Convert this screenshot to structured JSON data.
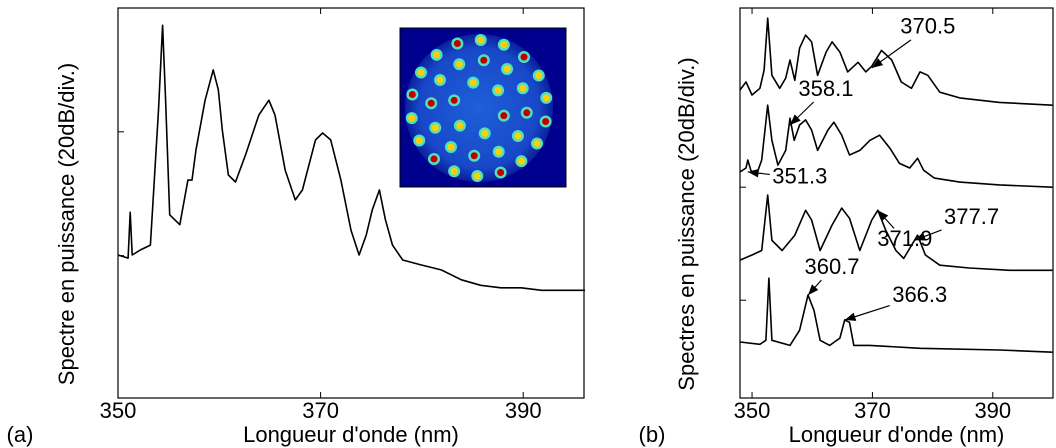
{
  "chart_data": [
    {
      "type": "line",
      "panel_label": "(a)",
      "xlabel": "Longueur d'onde (nm)",
      "ylabel": "Spectre en puissance (20dB/div.)",
      "xlim": [
        350,
        396
      ],
      "xticks": [
        350,
        370,
        390
      ],
      "ylim": [
        -23,
        40
      ],
      "yticks": [
        0,
        20
      ],
      "series": [
        {
          "color": "#000000",
          "x": [
            350.0,
            351.0,
            351.2,
            351.4,
            352.2,
            353.2,
            354.0,
            354.4,
            354.7,
            355.1,
            356.1,
            356.9,
            357.3,
            357.7,
            358.6,
            359.4,
            359.9,
            360.3,
            360.9,
            361.6,
            362.6,
            363.9,
            364.9,
            365.5,
            366.5,
            367.5,
            368.2,
            369.5,
            370.2,
            371.0,
            372.0,
            373.0,
            373.8,
            374.5,
            375.1,
            375.8,
            376.4,
            377.1,
            378.1,
            379.9,
            381.9,
            383.9,
            385.8,
            387.8,
            389.8,
            391.8,
            396.1
          ],
          "values": [
            0.1,
            -0.4,
            7.0,
            0.1,
            0.9,
            1.7,
            23.5,
            37.2,
            25.1,
            6.6,
            5.0,
            12.2,
            12.2,
            17.1,
            25.1,
            30.0,
            26.8,
            20.3,
            13.0,
            11.9,
            16.3,
            22.7,
            25.1,
            22.7,
            13.8,
            9.0,
            10.6,
            18.7,
            19.8,
            18.7,
            12.2,
            4.1,
            0.1,
            3.3,
            7.4,
            10.6,
            5.8,
            1.7,
            -0.7,
            -1.5,
            -2.3,
            -3.9,
            -4.8,
            -5.2,
            -5.2,
            -5.6,
            -5.6
          ]
        }
      ]
    },
    {
      "type": "line",
      "panel_label": "(b)",
      "xlabel": "Longueur d'onde (nm)",
      "ylabel": "Spectres en puissance (20dB/div.)",
      "xlim": [
        348,
        400
      ],
      "xticks": [
        350,
        370,
        390
      ],
      "ylim": [
        -17.3,
        51.7
      ],
      "yticks": [
        0,
        20
      ],
      "series": [
        {
          "color": "#000000",
          "x": [
            348.0,
            349.0,
            350.0,
            351.3,
            352.0,
            352.6,
            353.3,
            354.6,
            355.6,
            356.3,
            357.1,
            357.9,
            358.9,
            359.9,
            360.9,
            362.3,
            363.3,
            364.6,
            365.9,
            367.6,
            368.9,
            369.9,
            371.5,
            373.2,
            374.8,
            376.5,
            377.9,
            379.2,
            381.2,
            384.5,
            391.1,
            399.9
          ],
          "values": [
            37.2,
            38.6,
            36.3,
            37.5,
            40.7,
            49.9,
            39.8,
            37.5,
            39.3,
            42.5,
            38.9,
            44.6,
            46.9,
            45.7,
            39.8,
            43.9,
            45.7,
            43.9,
            40.4,
            42.1,
            40.4,
            41.4,
            44.2,
            42.5,
            38.6,
            37.5,
            40.4,
            39.8,
            36.8,
            35.8,
            35.0,
            34.5
          ]
        },
        {
          "color": "#000000",
          "x": [
            348.0,
            349.0,
            349.3,
            349.8,
            350.7,
            351.6,
            352.6,
            353.3,
            354.3,
            355.6,
            356.3,
            357.0,
            357.9,
            358.9,
            359.9,
            360.9,
            362.6,
            363.6,
            364.9,
            366.2,
            367.9,
            369.6,
            371.2,
            372.9,
            374.5,
            376.2,
            377.5,
            378.5,
            380.3,
            384.5,
            391.1,
            399.9
          ],
          "values": [
            22.7,
            23.4,
            24.8,
            23.0,
            22.1,
            24.8,
            34.5,
            28.3,
            23.9,
            26.5,
            32.2,
            28.3,
            31.0,
            31.9,
            30.1,
            26.5,
            30.1,
            31.5,
            29.2,
            25.7,
            26.5,
            28.3,
            29.2,
            26.9,
            24.2,
            23.4,
            25.1,
            23.0,
            21.6,
            20.9,
            20.4,
            20.0
          ]
        },
        {
          "color": "#000000",
          "x": [
            348.0,
            350.0,
            351.6,
            352.6,
            353.3,
            355.0,
            357.1,
            358.9,
            359.9,
            361.3,
            363.3,
            364.9,
            366.2,
            367.9,
            369.9,
            370.9,
            372.2,
            373.9,
            375.2,
            376.5,
            377.5,
            378.8,
            381.2,
            386.1,
            392.8,
            399.9
          ],
          "values": [
            7.1,
            8.0,
            8.8,
            18.6,
            10.6,
            8.8,
            11.5,
            15.9,
            14.2,
            8.8,
            13.3,
            16.3,
            14.5,
            8.8,
            14.2,
            15.9,
            12.4,
            8.8,
            7.4,
            9.7,
            11.5,
            8.0,
            6.2,
            5.7,
            5.3,
            5.3
          ]
        },
        {
          "color": "#000000",
          "x": [
            348.0,
            351.3,
            352.3,
            352.8,
            353.3,
            356.3,
            357.9,
            359.3,
            360.3,
            361.3,
            362.9,
            364.6,
            365.4,
            366.2,
            366.9,
            369.6,
            377.9,
            391.1,
            399.9
          ],
          "values": [
            -7.4,
            -7.8,
            -7.1,
            3.9,
            -7.1,
            -8.0,
            -5.3,
            0.9,
            -1.8,
            -7.1,
            -8.0,
            -6.7,
            -3.5,
            -3.9,
            -8.0,
            -8.0,
            -8.5,
            -8.8,
            -9.2
          ]
        }
      ],
      "annotations": [
        {
          "text": "370.5",
          "xy": [
            369.9,
            41.1
          ]
        },
        {
          "text": "358.1",
          "xy": [
            356.3,
            31.0
          ]
        },
        {
          "text": "351.3",
          "xy": [
            349.3,
            22.7
          ]
        },
        {
          "text": "371.9",
          "xy": [
            370.9,
            15.9
          ]
        },
        {
          "text": "377.7",
          "xy": [
            377.0,
            10.6
          ]
        },
        {
          "text": "360.7",
          "xy": [
            359.3,
            0.9
          ]
        },
        {
          "text": "366.3",
          "xy": [
            365.4,
            -3.5
          ]
        }
      ]
    }
  ]
}
